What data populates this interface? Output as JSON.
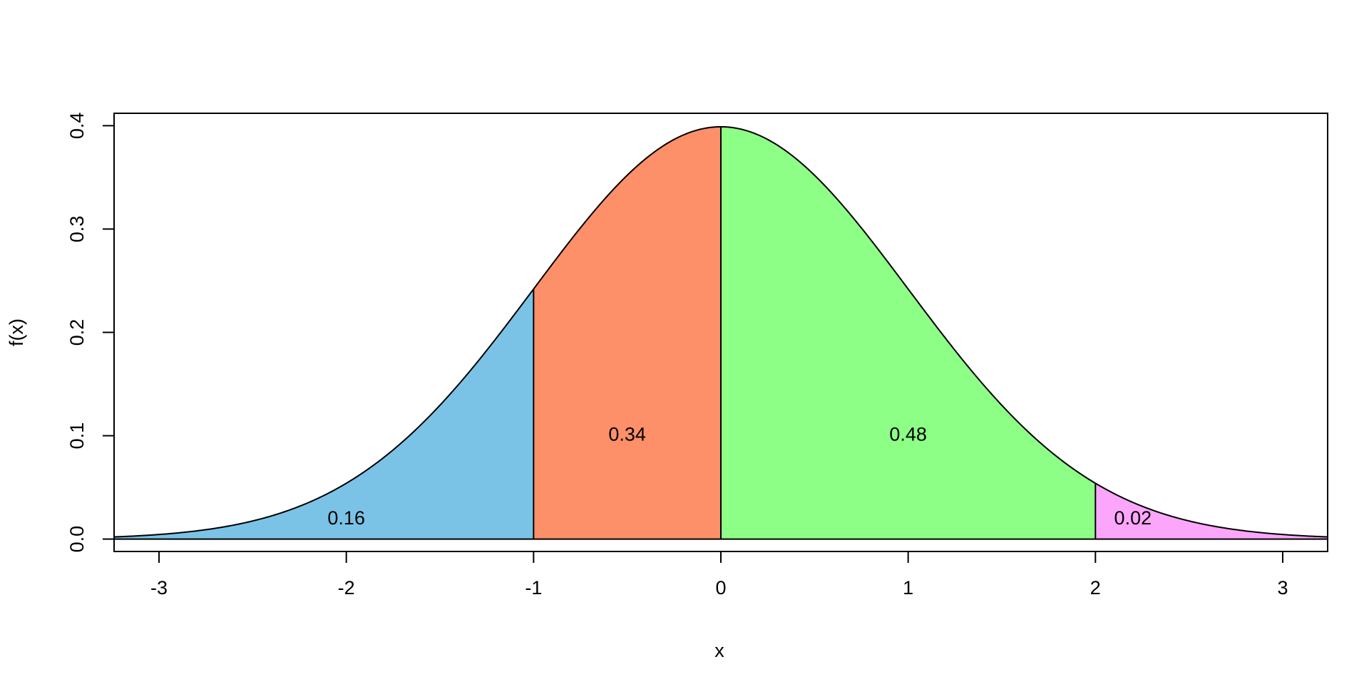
{
  "chart_data": {
    "type": "area",
    "xlabel": "x",
    "ylabel": "f(x)",
    "xlim": [
      -3.24,
      3.24
    ],
    "ylim": [
      -0.012,
      0.412
    ],
    "x_ticks": [
      -3,
      -2,
      -1,
      0,
      1,
      2,
      3
    ],
    "y_ticks": [
      0.0,
      0.1,
      0.2,
      0.3,
      0.4
    ],
    "x_tick_labels": [
      "-3",
      "-2",
      "-1",
      "0",
      "1",
      "2",
      "3"
    ],
    "y_tick_labels": [
      "0.0",
      "0.1",
      "0.2",
      "0.3",
      "0.4"
    ],
    "curve": "standard normal density",
    "regions": [
      {
        "from": -3.24,
        "to": -1,
        "color": "#7bc3e6",
        "label": "0.16",
        "label_x": -2,
        "label_y": 0.019
      },
      {
        "from": -1,
        "to": 0,
        "color": "#fd8f69",
        "label": "0.34",
        "label_x": -0.5,
        "label_y": 0.1
      },
      {
        "from": 0,
        "to": 2,
        "color": "#8dff86",
        "label": "0.48",
        "label_x": 1,
        "label_y": 0.1
      },
      {
        "from": 2,
        "to": 3.24,
        "color": "#fba6fb",
        "label": "0.02",
        "label_x": 2.2,
        "label_y": 0.019
      }
    ],
    "grid": false,
    "legend": "none"
  }
}
